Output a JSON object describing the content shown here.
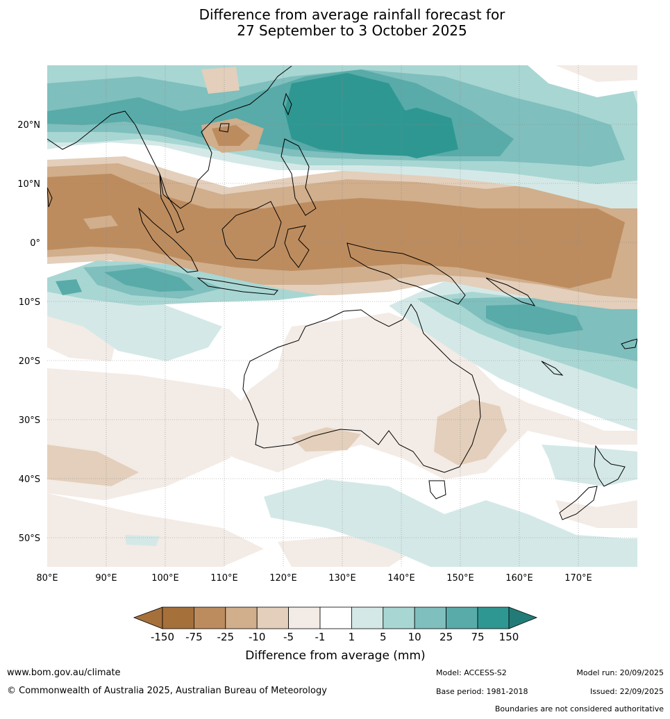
{
  "title": {
    "line1": "Difference from average rainfall forecast for",
    "line2": "27 September to 3 October 2025"
  },
  "map": {
    "lon_range": [
      80,
      180
    ],
    "lat_range": [
      -55,
      30
    ],
    "lon_labels": [
      "80°E",
      "90°E",
      "100°E",
      "110°E",
      "120°E",
      "130°E",
      "140°E",
      "150°E",
      "160°E",
      "170°E"
    ],
    "lat_labels": [
      "20°N",
      "10°N",
      "0°",
      "10°S",
      "20°S",
      "30°S",
      "40°S",
      "50°S"
    ],
    "colors": {
      "dry150": "#a6703b",
      "dry75": "#bd8c5e",
      "dry25": "#d1ae8c",
      "dry10": "#e3cfbb",
      "dry5": "#f3ebe5",
      "neutral": "#ffffff",
      "wet1": "#d4e9e7",
      "wet5": "#a8d6d3",
      "wet10": "#7fbfbd",
      "wet25": "#58aba9",
      "wet75": "#2f9792",
      "wet150": "#237b78",
      "land_outline": "#000000",
      "grid": "#888888"
    }
  },
  "colorbar": {
    "title": "Difference from average (mm)",
    "ticks": [
      "-150",
      "-75",
      "-25",
      "-10",
      "-5",
      "-1",
      "1",
      "5",
      "10",
      "25",
      "75",
      "150"
    ]
  },
  "footer": {
    "website": "www.bom.gov.au/climate",
    "copyright": "© Commonwealth of Australia 2025, Australian Bureau of Meteorology",
    "model": "Model: ACCESS-S2",
    "base_period": "Base period: 1981-2018",
    "model_run": "Model run: 20/09/2025",
    "issued": "Issued: 22/09/2025",
    "boundaries": "Boundaries are not considered authoritative"
  }
}
